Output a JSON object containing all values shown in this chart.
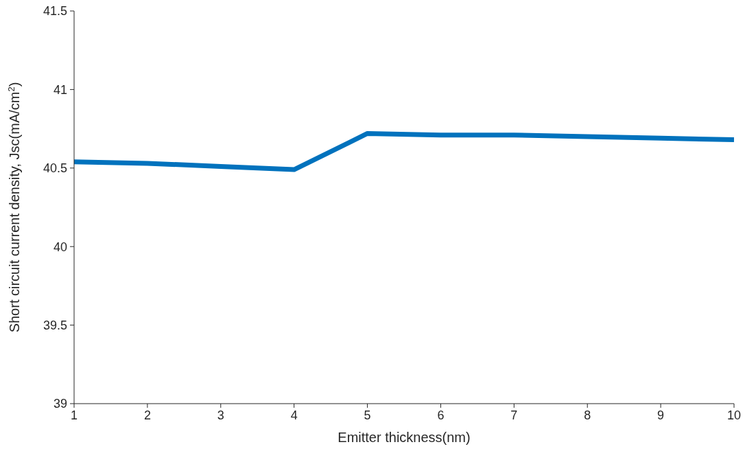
{
  "chart_data": {
    "type": "line",
    "xlabel": "Emitter thickness(nm)",
    "ylabel": "Short circuit current density, Jsc(mA/cm$^{2}$)",
    "x": [
      1,
      2,
      3,
      4,
      5,
      6,
      7,
      8,
      9,
      10
    ],
    "series": [
      {
        "color": "#0072bd",
        "values": [
          40.54,
          40.53,
          40.51,
          40.49,
          40.72,
          40.71,
          40.71,
          40.7,
          40.69,
          40.68
        ]
      }
    ],
    "xlim": [
      1,
      10
    ],
    "xticks": [
      1,
      2,
      3,
      4,
      5,
      6,
      7,
      8,
      9,
      10
    ],
    "ylim": [
      39,
      41.5
    ],
    "yticks": [
      39,
      39.5,
      40,
      40.5,
      41,
      41.5
    ],
    "grid": false,
    "marker": "none",
    "line_style": "solid"
  }
}
